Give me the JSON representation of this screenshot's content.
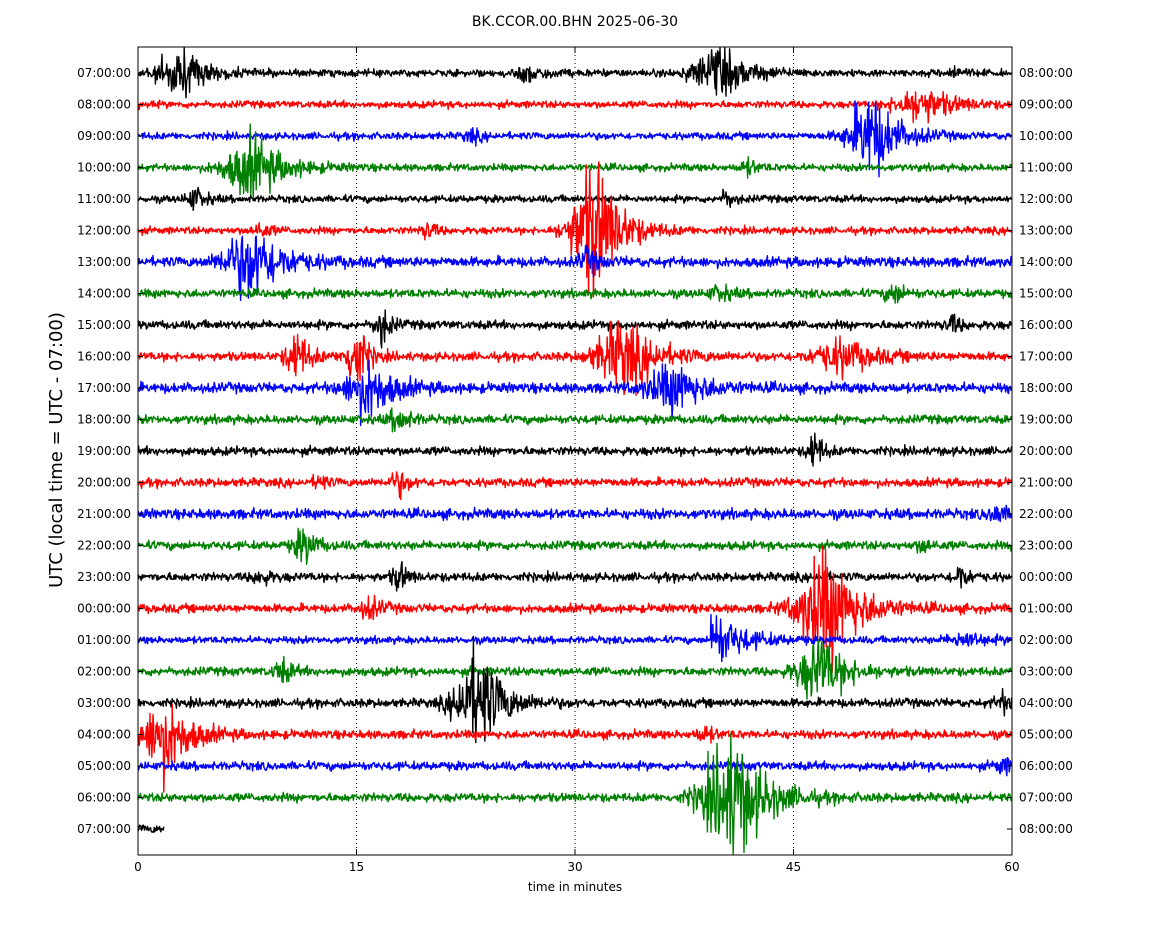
{
  "chart_data": {
    "type": "line",
    "title": "BK.CCOR.00.BHN 2025-06-30",
    "xlabel": "time in minutes",
    "ylabel": "UTC (local time = UTC - 07:00)",
    "xlim": [
      0,
      60
    ],
    "x_ticks": [
      0,
      15,
      30,
      45,
      60
    ],
    "grid": "vertical dotted lines at 15, 30, 45",
    "colors": [
      "#000000",
      "#ff0000",
      "#0000ff",
      "#008000"
    ],
    "rows": [
      {
        "left": "07:00:00",
        "right": "08:00:00",
        "color": "#000000",
        "end_minute": 60,
        "noise": 2.5,
        "events": [
          {
            "t": 3,
            "amp": 16,
            "dur": 2.5
          },
          {
            "t": 27,
            "amp": 6,
            "dur": 1.5
          },
          {
            "t": 40,
            "amp": 16,
            "dur": 3
          },
          {
            "t": 56,
            "amp": 4,
            "dur": 1
          }
        ]
      },
      {
        "left": "08:00:00",
        "right": "09:00:00",
        "color": "#ff0000",
        "end_minute": 60,
        "noise": 2.5,
        "events": [
          {
            "t": 54,
            "amp": 12,
            "dur": 3
          }
        ]
      },
      {
        "left": "09:00:00",
        "right": "10:00:00",
        "color": "#0000ff",
        "end_minute": 60,
        "noise": 2.5,
        "events": [
          {
            "t": 50.5,
            "amp": 30,
            "dur": 2.5
          },
          {
            "t": 23,
            "amp": 4,
            "dur": 1
          }
        ]
      },
      {
        "left": "10:00:00",
        "right": "11:00:00",
        "color": "#008000",
        "end_minute": 60,
        "noise": 2.5,
        "events": [
          {
            "t": 8,
            "amp": 22,
            "dur": 3
          },
          {
            "t": 42,
            "amp": 5,
            "dur": 1
          }
        ]
      },
      {
        "left": "11:00:00",
        "right": "12:00:00",
        "color": "#000000",
        "end_minute": 60,
        "noise": 2.5,
        "events": [
          {
            "t": 4,
            "amp": 8,
            "dur": 1
          },
          {
            "t": 40.5,
            "amp": 6,
            "dur": 0.8
          }
        ]
      },
      {
        "left": "12:00:00",
        "right": "13:00:00",
        "color": "#ff0000",
        "end_minute": 60,
        "noise": 2.5,
        "events": [
          {
            "t": 31.5,
            "amp": 50,
            "dur": 2.5
          },
          {
            "t": 20,
            "amp": 6,
            "dur": 0.8
          },
          {
            "t": 8.5,
            "amp": 5,
            "dur": 1
          }
        ]
      },
      {
        "left": "13:00:00",
        "right": "14:00:00",
        "color": "#0000ff",
        "end_minute": 60,
        "noise": 3.5,
        "events": [
          {
            "t": 8,
            "amp": 26,
            "dur": 3
          },
          {
            "t": 31,
            "amp": 8,
            "dur": 1
          }
        ]
      },
      {
        "left": "14:00:00",
        "right": "15:00:00",
        "color": "#008000",
        "end_minute": 60,
        "noise": 3,
        "events": [
          {
            "t": 52,
            "amp": 7,
            "dur": 1
          },
          {
            "t": 40,
            "amp": 5,
            "dur": 1.2
          }
        ]
      },
      {
        "left": "15:00:00",
        "right": "16:00:00",
        "color": "#000000",
        "end_minute": 60,
        "noise": 3,
        "events": [
          {
            "t": 16.8,
            "amp": 14,
            "dur": 0.8
          },
          {
            "t": 56,
            "amp": 6,
            "dur": 0.8
          }
        ]
      },
      {
        "left": "16:00:00",
        "right": "17:00:00",
        "color": "#ff0000",
        "end_minute": 60,
        "noise": 3,
        "events": [
          {
            "t": 33.5,
            "amp": 26,
            "dur": 3
          },
          {
            "t": 48.5,
            "amp": 12,
            "dur": 3
          },
          {
            "t": 15,
            "amp": 28,
            "dur": 1
          },
          {
            "t": 11,
            "amp": 18,
            "dur": 1.2
          }
        ]
      },
      {
        "left": "17:00:00",
        "right": "18:00:00",
        "color": "#0000ff",
        "end_minute": 60,
        "noise": 3.5,
        "events": [
          {
            "t": 16,
            "amp": 20,
            "dur": 2.5
          },
          {
            "t": 37,
            "amp": 16,
            "dur": 3
          }
        ]
      },
      {
        "left": "18:00:00",
        "right": "19:00:00",
        "color": "#008000",
        "end_minute": 60,
        "noise": 3,
        "events": [
          {
            "t": 18,
            "amp": 8,
            "dur": 1.2
          }
        ]
      },
      {
        "left": "19:00:00",
        "right": "20:00:00",
        "color": "#000000",
        "end_minute": 60,
        "noise": 3,
        "events": [
          {
            "t": 46.5,
            "amp": 14,
            "dur": 0.8
          }
        ]
      },
      {
        "left": "20:00:00",
        "right": "21:00:00",
        "color": "#ff0000",
        "end_minute": 60,
        "noise": 3,
        "events": [
          {
            "t": 18,
            "amp": 8,
            "dur": 1
          },
          {
            "t": 12.5,
            "amp": 6,
            "dur": 0.6
          }
        ]
      },
      {
        "left": "21:00:00",
        "right": "22:00:00",
        "color": "#0000ff",
        "end_minute": 60,
        "noise": 3.5,
        "events": [
          {
            "t": 59,
            "amp": 6,
            "dur": 1
          }
        ]
      },
      {
        "left": "22:00:00",
        "right": "23:00:00",
        "color": "#008000",
        "end_minute": 60,
        "noise": 3,
        "events": [
          {
            "t": 11.5,
            "amp": 12,
            "dur": 1.2
          },
          {
            "t": 54,
            "amp": 5,
            "dur": 0.8
          }
        ]
      },
      {
        "left": "23:00:00",
        "right": "00:00:00",
        "color": "#000000",
        "end_minute": 60,
        "noise": 3,
        "events": [
          {
            "t": 18,
            "amp": 10,
            "dur": 0.8
          },
          {
            "t": 56.5,
            "amp": 9,
            "dur": 0.8
          },
          {
            "t": 8.5,
            "amp": 5,
            "dur": 1
          }
        ]
      },
      {
        "left": "00:00:00",
        "right": "01:00:00",
        "color": "#ff0000",
        "end_minute": 60,
        "noise": 3,
        "events": [
          {
            "t": 47.5,
            "amp": 40,
            "dur": 3.2
          },
          {
            "t": 16,
            "amp": 7,
            "dur": 1.2
          }
        ]
      },
      {
        "left": "01:00:00",
        "right": "02:00:00",
        "color": "#0000ff",
        "end_minute": 60,
        "noise": 2.5,
        "events": [
          {
            "t": 39.3,
            "amp": 24,
            "dur": 1.8,
            "onset": true
          },
          {
            "t": 57,
            "amp": 5,
            "dur": 2
          }
        ]
      },
      {
        "left": "02:00:00",
        "right": "03:00:00",
        "color": "#008000",
        "end_minute": 60,
        "noise": 3,
        "events": [
          {
            "t": 47,
            "amp": 24,
            "dur": 2.5
          },
          {
            "t": 10,
            "amp": 8,
            "dur": 1
          }
        ]
      },
      {
        "left": "03:00:00",
        "right": "04:00:00",
        "color": "#000000",
        "end_minute": 60,
        "noise": 3,
        "events": [
          {
            "t": 23.5,
            "amp": 36,
            "dur": 2.5
          },
          {
            "t": 59.5,
            "amp": 6,
            "dur": 1
          }
        ]
      },
      {
        "left": "04:00:00",
        "right": "05:00:00",
        "color": "#ff0000",
        "end_minute": 60,
        "noise": 3,
        "events": [
          {
            "t": 2,
            "amp": 28,
            "dur": 2.5
          },
          {
            "t": 39,
            "amp": 5,
            "dur": 1
          }
        ]
      },
      {
        "left": "05:00:00",
        "right": "06:00:00",
        "color": "#0000ff",
        "end_minute": 60,
        "noise": 3,
        "events": [
          {
            "t": 59.5,
            "amp": 5,
            "dur": 1
          }
        ]
      },
      {
        "left": "06:00:00",
        "right": "07:00:00",
        "color": "#008000",
        "end_minute": 60,
        "noise": 3,
        "events": [
          {
            "t": 41,
            "amp": 44,
            "dur": 3.2
          }
        ]
      },
      {
        "left": "07:00:00",
        "right": "08:00:00",
        "color": "#000000",
        "end_minute": 1.8,
        "noise": 3,
        "events": []
      }
    ]
  }
}
